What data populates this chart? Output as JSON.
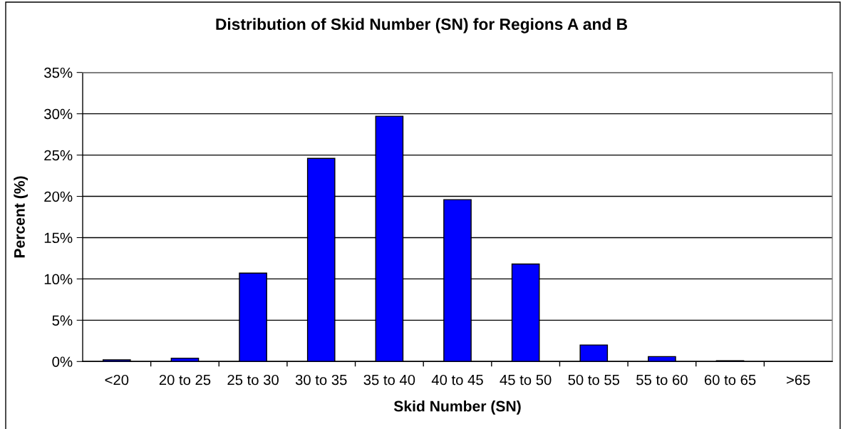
{
  "chart_data": {
    "type": "bar",
    "title": "Distribution of Skid Number (SN) for Regions A and B",
    "xlabel": "Skid Number (SN)",
    "ylabel": "Percent (%)",
    "categories": [
      "<20",
      "20 to 25",
      "25 to 30",
      "30 to 35",
      "35 to 40",
      "40 to 45",
      "45 to 50",
      "50 to 55",
      "55 to 60",
      "60 to 65",
      ">65"
    ],
    "values": [
      0.2,
      0.4,
      10.7,
      24.6,
      29.7,
      19.6,
      11.8,
      2.0,
      0.6,
      0.1,
      0
    ],
    "color": "#0000ff",
    "ylim": [
      0,
      35
    ],
    "yticks": [
      {
        "value": 0,
        "label": "0%"
      },
      {
        "value": 5,
        "label": "5%"
      },
      {
        "value": 10,
        "label": "10%"
      },
      {
        "value": 15,
        "label": "15%"
      },
      {
        "value": 20,
        "label": "20%"
      },
      {
        "value": 25,
        "label": "25%"
      },
      {
        "value": 30,
        "label": "30%"
      },
      {
        "value": 35,
        "label": "35%"
      }
    ],
    "grid": "y"
  }
}
